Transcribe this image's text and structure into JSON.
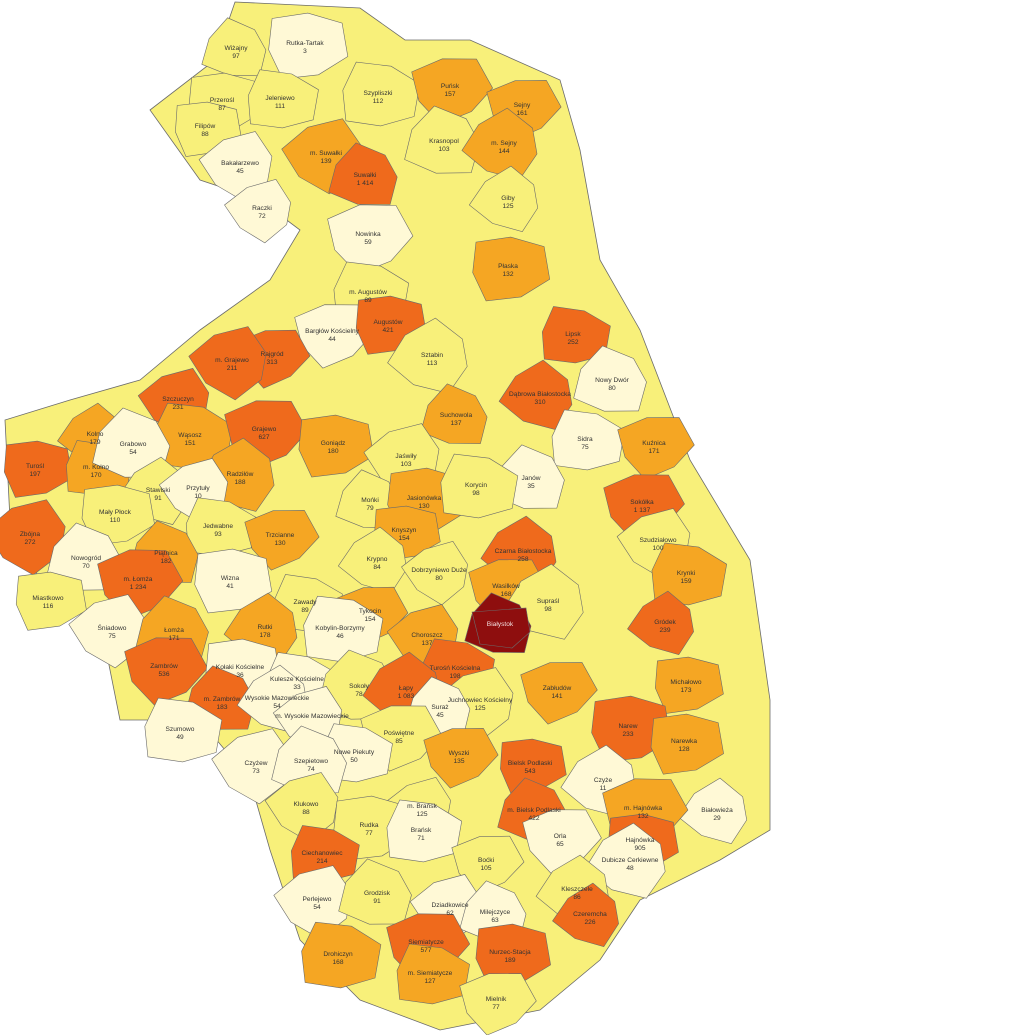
{
  "legend_colors": {
    "very_low": "#FFF9D6",
    "low": "#F8F07A",
    "medium": "#F5A623",
    "high": "#EF6A1C",
    "highest": "#8E0E0E"
  },
  "municipalities": [
    {
      "name": "Wiżajny",
      "value": "97",
      "level": "low"
    },
    {
      "name": "Rutka-Tartak",
      "value": "3",
      "level": "very_low"
    },
    {
      "name": "Szypliszki",
      "value": "112",
      "level": "low"
    },
    {
      "name": "Puńsk",
      "value": "157",
      "level": "medium"
    },
    {
      "name": "Przerośl",
      "value": "87",
      "level": "low"
    },
    {
      "name": "Jeleniewo",
      "value": "111",
      "level": "low"
    },
    {
      "name": "Sejny",
      "value": "161",
      "level": "medium"
    },
    {
      "name": "Filipów",
      "value": "88",
      "level": "low"
    },
    {
      "name": "m. Suwałki",
      "value": "139",
      "level": "medium"
    },
    {
      "name": "Krasnopol",
      "value": "103",
      "level": "low"
    },
    {
      "name": "m. Sejny",
      "value": "144",
      "level": "medium"
    },
    {
      "name": "Bakałarzewo",
      "value": "45",
      "level": "very_low"
    },
    {
      "name": "Suwałki",
      "value": "1 414",
      "level": "high"
    },
    {
      "name": "Giby",
      "value": "125",
      "level": "low"
    },
    {
      "name": "Raczki",
      "value": "72",
      "level": "very_low"
    },
    {
      "name": "Nowinka",
      "value": "59",
      "level": "very_low"
    },
    {
      "name": "Płaska",
      "value": "132",
      "level": "medium"
    },
    {
      "name": "m. Augustów",
      "value": "89",
      "level": "low"
    },
    {
      "name": "Bargłów Kościelny",
      "value": "44",
      "level": "very_low"
    },
    {
      "name": "Augustów",
      "value": "421",
      "level": "high"
    },
    {
      "name": "Lipsk",
      "value": "252",
      "level": "high"
    },
    {
      "name": "Rajgród",
      "value": "313",
      "level": "high"
    },
    {
      "name": "Sztabin",
      "value": "113",
      "level": "low"
    },
    {
      "name": "m. Grajewo",
      "value": "211",
      "level": "high"
    },
    {
      "name": "Nowy Dwór",
      "value": "80",
      "level": "very_low"
    },
    {
      "name": "Dąbrowa Białostocka",
      "value": "310",
      "level": "high"
    },
    {
      "name": "Szczuczyn",
      "value": "231",
      "level": "high"
    },
    {
      "name": "Suchowola",
      "value": "137",
      "level": "medium"
    },
    {
      "name": "Kolno",
      "value": "179",
      "level": "medium"
    },
    {
      "name": "Wąsosz",
      "value": "151",
      "level": "medium"
    },
    {
      "name": "Grajewo",
      "value": "627",
      "level": "high"
    },
    {
      "name": "Goniądz",
      "value": "180",
      "level": "medium"
    },
    {
      "name": "Sidra",
      "value": "75",
      "level": "very_low"
    },
    {
      "name": "Kuźnica",
      "value": "171",
      "level": "medium"
    },
    {
      "name": "Turośl",
      "value": "197",
      "level": "high"
    },
    {
      "name": "m. Kolno",
      "value": "170",
      "level": "medium"
    },
    {
      "name": "Grabowo",
      "value": "54",
      "level": "very_low"
    },
    {
      "name": "Radziłów",
      "value": "188",
      "level": "medium"
    },
    {
      "name": "Jaświły",
      "value": "103",
      "level": "low"
    },
    {
      "name": "Janów",
      "value": "35",
      "level": "very_low"
    },
    {
      "name": "Stawiski",
      "value": "91",
      "level": "low"
    },
    {
      "name": "Przytuły",
      "value": "10",
      "level": "very_low"
    },
    {
      "name": "Mońki",
      "value": "79",
      "level": "low"
    },
    {
      "name": "Jasionówka",
      "value": "130",
      "level": "medium"
    },
    {
      "name": "Korycin",
      "value": "98",
      "level": "low"
    },
    {
      "name": "Sokółka",
      "value": "1 137",
      "level": "high"
    },
    {
      "name": "Mały Płock",
      "value": "110",
      "level": "low"
    },
    {
      "name": "Jedwabne",
      "value": "93",
      "level": "low"
    },
    {
      "name": "Trzcianne",
      "value": "130",
      "level": "medium"
    },
    {
      "name": "Knyszyn",
      "value": "154",
      "level": "medium"
    },
    {
      "name": "Zbójna",
      "value": "272",
      "level": "high"
    },
    {
      "name": "Nowogród",
      "value": "70",
      "level": "very_low"
    },
    {
      "name": "Czarna Białostocka",
      "value": "258",
      "level": "high"
    },
    {
      "name": "Szudziałowo",
      "value": "100",
      "level": "low"
    },
    {
      "name": "Piątnica",
      "value": "182",
      "level": "medium"
    },
    {
      "name": "Krypno",
      "value": "84",
      "level": "low"
    },
    {
      "name": "Dobrzyniewo Duże",
      "value": "80",
      "level": "low"
    },
    {
      "name": "m. Łomża",
      "value": "1 234",
      "level": "high"
    },
    {
      "name": "Wizna",
      "value": "41",
      "level": "very_low"
    },
    {
      "name": "Krynki",
      "value": "159",
      "level": "medium"
    },
    {
      "name": "Wasilków",
      "value": "168",
      "level": "medium"
    },
    {
      "name": "Miastkowo",
      "value": "116",
      "level": "low"
    },
    {
      "name": "Zawady",
      "value": "89",
      "level": "low"
    },
    {
      "name": "Tykocin",
      "value": "154",
      "level": "medium"
    },
    {
      "name": "Supraśl",
      "value": "98",
      "level": "low"
    },
    {
      "name": "Śniadowo",
      "value": "75",
      "level": "very_low"
    },
    {
      "name": "Łomża",
      "value": "171",
      "level": "medium"
    },
    {
      "name": "Rutki",
      "value": "178",
      "level": "medium"
    },
    {
      "name": "Choroszcz",
      "value": "137",
      "level": "medium"
    },
    {
      "name": "Białystok",
      "value": "",
      "level": "highest"
    },
    {
      "name": "Gródek",
      "value": "239",
      "level": "high"
    },
    {
      "name": "Kobylin-Borzymy",
      "value": "46",
      "level": "very_low"
    },
    {
      "name": "Zambrów",
      "value": "536",
      "level": "high"
    },
    {
      "name": "Kołaki Kościelne",
      "value": "36",
      "level": "very_low"
    },
    {
      "name": "Turośń Kościelna",
      "value": "198",
      "level": "high"
    },
    {
      "name": "Zabłudów",
      "value": "141",
      "level": "medium"
    },
    {
      "name": "Michałowo",
      "value": "173",
      "level": "medium"
    },
    {
      "name": "Kulesze Kościelne",
      "value": "33",
      "level": "very_low"
    },
    {
      "name": "Sokoły",
      "value": "78",
      "level": "low"
    },
    {
      "name": "Łapy",
      "value": "1 083",
      "level": "high"
    },
    {
      "name": "Juchnowiec Kościelny",
      "value": "125",
      "level": "low"
    },
    {
      "name": "m. Zambrów",
      "value": "183",
      "level": "high"
    },
    {
      "name": "Wysokie Mazowieckie",
      "value": "54",
      "level": "very_low"
    },
    {
      "name": "m. Wysokie Mazowieckie",
      "value": "",
      "level": "very_low"
    },
    {
      "name": "Suraż",
      "value": "45",
      "level": "very_low"
    },
    {
      "name": "Narew",
      "value": "233",
      "level": "high"
    },
    {
      "name": "Szumowo",
      "value": "49",
      "level": "very_low"
    },
    {
      "name": "Poświętne",
      "value": "85",
      "level": "low"
    },
    {
      "name": "Narewka",
      "value": "128",
      "level": "medium"
    },
    {
      "name": "Nowe Piekuty",
      "value": "50",
      "level": "very_low"
    },
    {
      "name": "Wyszki",
      "value": "135",
      "level": "medium"
    },
    {
      "name": "Bielsk Podlaski",
      "value": "543",
      "level": "high"
    },
    {
      "name": "Czyżew",
      "value": "73",
      "level": "very_low"
    },
    {
      "name": "Szepietowo",
      "value": "74",
      "level": "very_low"
    },
    {
      "name": "Czyże",
      "value": "11",
      "level": "very_low"
    },
    {
      "name": "Klukowo",
      "value": "88",
      "level": "low"
    },
    {
      "name": "m. Bielsk Podlaski",
      "value": "422",
      "level": "high"
    },
    {
      "name": "Białowieża",
      "value": "29",
      "level": "very_low"
    },
    {
      "name": "m. Brańsk",
      "value": "125",
      "level": "low"
    },
    {
      "name": "m. Hajnówka",
      "value": "132",
      "level": "medium"
    },
    {
      "name": "Rudka",
      "value": "77",
      "level": "low"
    },
    {
      "name": "Brańsk",
      "value": "71",
      "level": "very_low"
    },
    {
      "name": "Orla",
      "value": "65",
      "level": "very_low"
    },
    {
      "name": "Hajnówka",
      "value": "905",
      "level": "high"
    },
    {
      "name": "Ciechanowiec",
      "value": "214",
      "level": "high"
    },
    {
      "name": "Boćki",
      "value": "105",
      "level": "low"
    },
    {
      "name": "Dubicze Cerkiewne",
      "value": "48",
      "level": "very_low"
    },
    {
      "name": "Perlejewo",
      "value": "54",
      "level": "very_low"
    },
    {
      "name": "Grodzisk",
      "value": "91",
      "level": "low"
    },
    {
      "name": "Kleszczele",
      "value": "86",
      "level": "low"
    },
    {
      "name": "Dziadkowice",
      "value": "62",
      "level": "very_low"
    },
    {
      "name": "Milejczyce",
      "value": "63",
      "level": "very_low"
    },
    {
      "name": "Czeremcha",
      "value": "226",
      "level": "high"
    },
    {
      "name": "Drohiczyn",
      "value": "168",
      "level": "medium"
    },
    {
      "name": "Siemiatycze",
      "value": "577",
      "level": "high"
    },
    {
      "name": "Nurzec-Stacja",
      "value": "189",
      "level": "high"
    },
    {
      "name": "m. Siemiatycze",
      "value": "127",
      "level": "medium"
    },
    {
      "name": "Mielnik",
      "value": "77",
      "level": "low"
    }
  ]
}
